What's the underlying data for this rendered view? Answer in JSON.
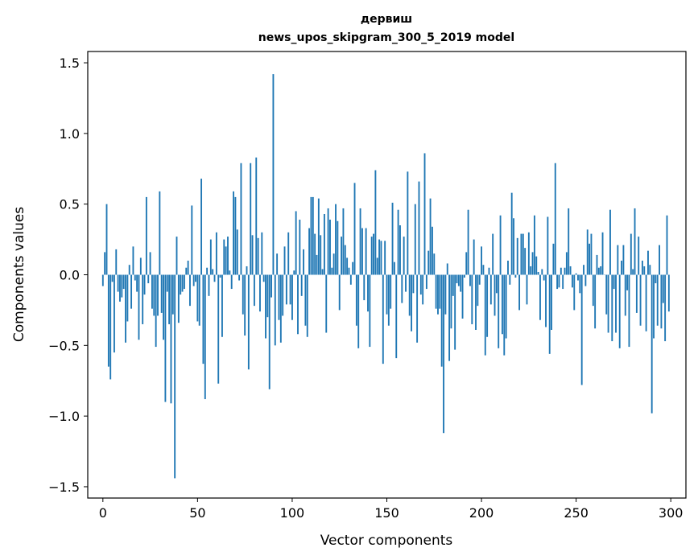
{
  "chart_data": {
    "type": "bar",
    "title": "дервиш",
    "subtitle": "news_upos_skipgram_300_5_2019 model",
    "xlabel": "Vector components",
    "ylabel": "Components values",
    "xlim": [
      -8,
      308
    ],
    "ylim": [
      -1.58,
      1.58
    ],
    "xticks": [
      0,
      50,
      100,
      150,
      200,
      250,
      300
    ],
    "yticks": [
      -1.5,
      -1.0,
      -0.5,
      0.0,
      0.5,
      1.0,
      1.5
    ],
    "ytick_labels": [
      "−1.5",
      "−1.0",
      "−0.5",
      "0.0",
      "0.5",
      "1.0",
      "1.5"
    ],
    "grid": false,
    "bar_color": "#1f77b4",
    "values": [
      -0.08,
      0.16,
      0.5,
      -0.65,
      -0.74,
      -0.05,
      -0.55,
      0.18,
      -0.12,
      -0.19,
      -0.16,
      -0.1,
      -0.48,
      -0.33,
      0.07,
      -0.24,
      0.2,
      -0.04,
      -0.12,
      -0.46,
      0.12,
      -0.35,
      -0.14,
      0.55,
      -0.06,
      0.16,
      -0.24,
      -0.29,
      -0.51,
      -0.29,
      0.59,
      -0.27,
      -0.46,
      -0.9,
      -0.12,
      -0.35,
      -0.91,
      -0.28,
      -1.44,
      0.27,
      -0.34,
      -0.14,
      -0.12,
      -0.1,
      0.05,
      0.1,
      -0.22,
      0.49,
      -0.08,
      -0.05,
      -0.33,
      -0.36,
      0.68,
      -0.63,
      -0.88,
      0.05,
      -0.15,
      0.25,
      0.04,
      -0.05,
      0.3,
      -0.77,
      -0.02,
      -0.44,
      0.25,
      0.2,
      0.27,
      0.03,
      -0.1,
      0.59,
      0.55,
      0.32,
      -0.04,
      0.79,
      -0.28,
      -0.43,
      0.06,
      -0.67,
      0.79,
      0.28,
      -0.22,
      0.83,
      0.26,
      -0.26,
      0.3,
      -0.05,
      -0.45,
      -0.3,
      -0.81,
      -0.16,
      1.42,
      -0.5,
      0.15,
      -0.32,
      -0.48,
      -0.29,
      0.2,
      -0.21,
      0.3,
      -0.21,
      -0.32,
      0.03,
      0.45,
      -0.42,
      0.39,
      -0.15,
      0.18,
      -0.36,
      -0.44,
      0.33,
      0.55,
      0.55,
      0.29,
      0.14,
      0.54,
      0.28,
      0.04,
      0.43,
      -0.41,
      0.47,
      0.39,
      0.05,
      0.15,
      0.5,
      0.38,
      -0.25,
      0.27,
      0.47,
      0.21,
      0.12,
      0.05,
      -0.07,
      0.09,
      0.65,
      -0.36,
      -0.52,
      0.47,
      0.33,
      -0.18,
      0.33,
      -0.26,
      -0.51,
      0.27,
      0.29,
      0.74,
      0.12,
      0.25,
      0.24,
      -0.63,
      0.24,
      -0.28,
      -0.36,
      -0.24,
      0.51,
      0.09,
      -0.59,
      0.46,
      0.35,
      -0.2,
      0.27,
      -0.12,
      0.73,
      -0.29,
      -0.4,
      -0.13,
      0.5,
      -0.48,
      0.66,
      -0.14,
      -0.21,
      0.86,
      -0.1,
      0.17,
      0.54,
      0.34,
      0.15,
      -0.24,
      -0.28,
      -0.24,
      -0.65,
      -1.12,
      -0.28,
      0.08,
      -0.61,
      -0.38,
      -0.15,
      -0.53,
      -0.06,
      -0.08,
      -0.12,
      -0.31,
      -0.02,
      0.16,
      0.46,
      -0.08,
      -0.35,
      0.25,
      -0.39,
      -0.22,
      -0.07,
      0.2,
      0.07,
      -0.57,
      -0.44,
      0.05,
      -0.21,
      0.29,
      -0.29,
      -0.13,
      -0.52,
      0.42,
      -0.42,
      -0.57,
      -0.45,
      0.1,
      -0.07,
      0.58,
      0.4,
      -0.02,
      0.26,
      -0.25,
      0.29,
      0.29,
      0.19,
      -0.21,
      0.3,
      0.06,
      0.16,
      0.42,
      0.13,
      0.02,
      -0.32,
      0.04,
      -0.04,
      -0.37,
      0.41,
      -0.56,
      -0.39,
      0.22,
      0.79,
      -0.1,
      -0.09,
      0.05,
      -0.1,
      0.05,
      0.16,
      0.47,
      0.06,
      -0.09,
      -0.25,
      0.01,
      -0.04,
      -0.13,
      -0.78,
      0.07,
      -0.08,
      0.32,
      0.22,
      0.29,
      -0.22,
      -0.38,
      0.14,
      0.05,
      0.06,
      0.3,
      0.0,
      -0.28,
      -0.41,
      0.46,
      -0.47,
      -0.1,
      -0.41,
      0.21,
      -0.52,
      0.1,
      0.21,
      -0.29,
      -0.11,
      -0.51,
      0.29,
      0.04,
      0.47,
      -0.27,
      0.27,
      -0.36,
      0.1,
      0.06,
      -0.4,
      0.17,
      0.07,
      -0.98,
      -0.45,
      -0.06,
      -0.36,
      0.21,
      -0.38,
      -0.2,
      -0.47,
      0.42,
      -0.26
    ]
  }
}
